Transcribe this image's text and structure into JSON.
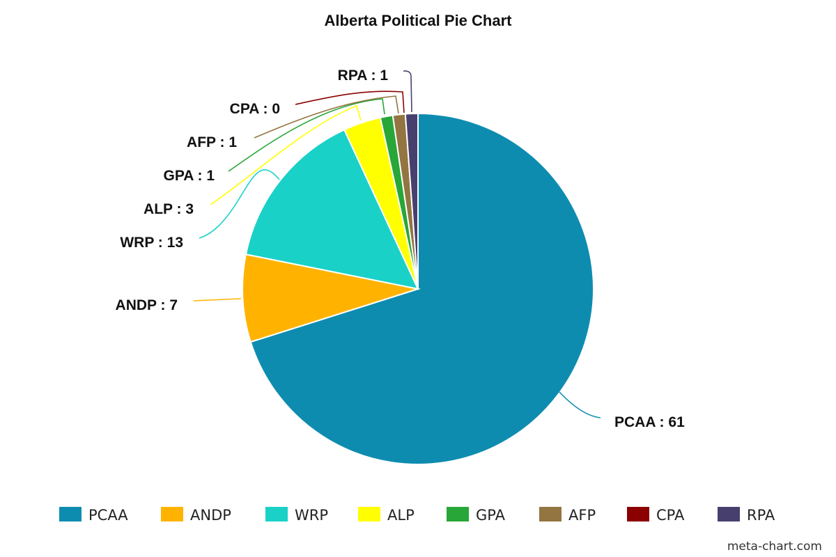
{
  "chart_data": {
    "type": "pie",
    "title": "Alberta Political Pie Chart",
    "label_separator": " : ",
    "categories": [
      "PCAA",
      "ANDP",
      "WRP",
      "ALP",
      "GPA",
      "AFP",
      "CPA",
      "RPA"
    ],
    "values": [
      61,
      7,
      13,
      3,
      1,
      1,
      0,
      1
    ],
    "colors": [
      "#0e8cb0",
      "#ffb300",
      "#19d1c7",
      "#ffff00",
      "#28a637",
      "#937542",
      "#8b0000",
      "#47406e"
    ],
    "legend_position": "bottom",
    "start_angle": "top, clockwise"
  },
  "watermark": "meta-chart.com"
}
